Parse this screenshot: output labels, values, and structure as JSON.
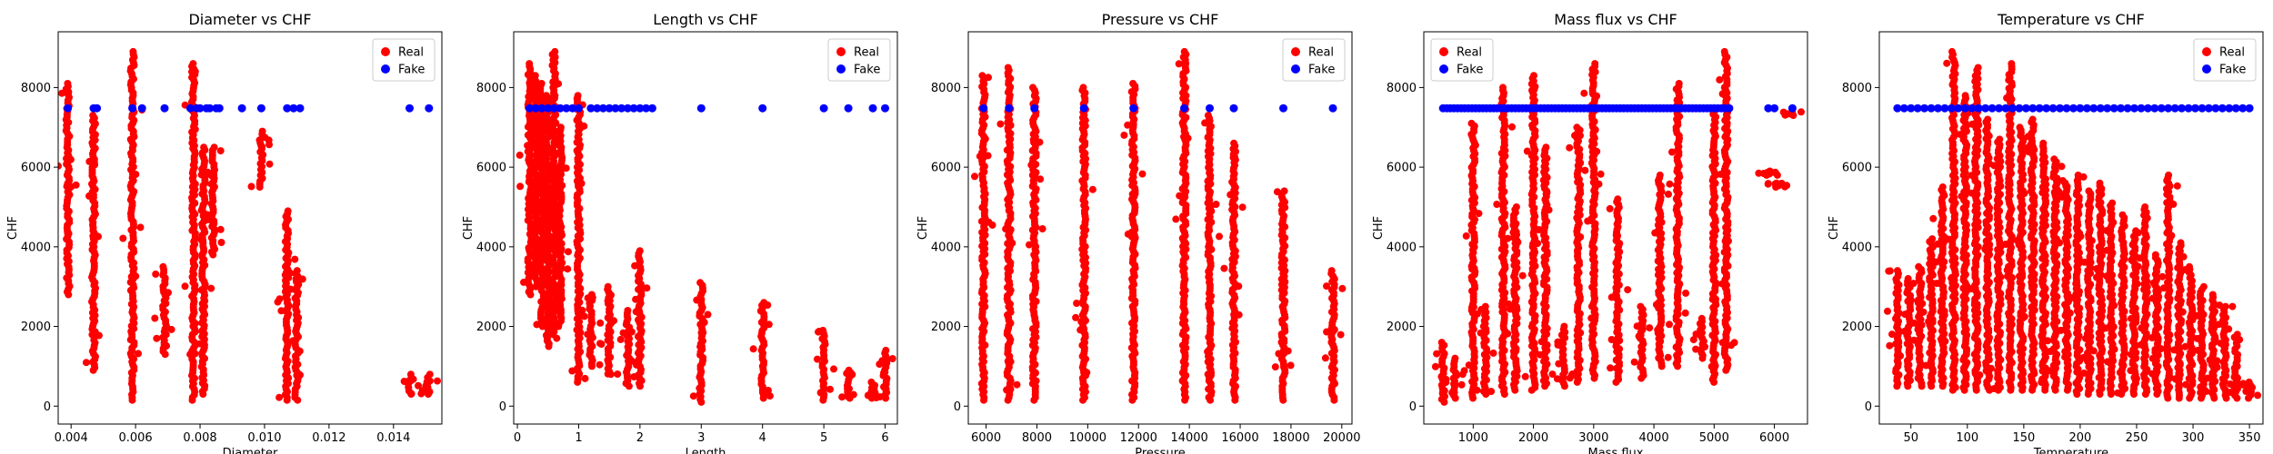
{
  "colors": {
    "real": "#ff0000",
    "fake": "#0000ff"
  },
  "chart_data": [
    {
      "type": "scatter",
      "title": "Diameter vs CHF",
      "xlabel": "Diameter",
      "ylabel": "CHF",
      "xlim": [
        0.0036,
        0.0155
      ],
      "ylim": [
        -450,
        9400
      ],
      "xticks": [
        0.004,
        0.006,
        0.008,
        0.01,
        0.012,
        0.014
      ],
      "xtick_labels": [
        "0.004",
        "0.006",
        "0.008",
        "0.010",
        "0.012",
        "0.014"
      ],
      "yticks": [
        0,
        2000,
        4000,
        6000,
        8000
      ],
      "ytick_labels": [
        "0",
        "2000",
        "4000",
        "6000",
        "8000"
      ],
      "legend": {
        "position": "top-right",
        "entries": [
          "Real",
          "Fake"
        ]
      },
      "real_columns": [
        {
          "x": 0.0039,
          "y_min": 2800,
          "y_max": 8100
        },
        {
          "x": 0.0047,
          "y_min": 900,
          "y_max": 7300
        },
        {
          "x": 0.0059,
          "y_min": 150,
          "y_max": 8900
        },
        {
          "x": 0.0069,
          "y_min": 1300,
          "y_max": 3500
        },
        {
          "x": 0.0078,
          "y_min": 150,
          "y_max": 8600
        },
        {
          "x": 0.0081,
          "y_min": 300,
          "y_max": 6500
        },
        {
          "x": 0.0084,
          "y_min": 3800,
          "y_max": 6500
        },
        {
          "x": 0.0099,
          "y_min": 5500,
          "y_max": 6900
        },
        {
          "x": 0.0107,
          "y_min": 150,
          "y_max": 4900
        },
        {
          "x": 0.011,
          "y_min": 150,
          "y_max": 3400
        },
        {
          "x": 0.0145,
          "y_min": 300,
          "y_max": 800
        },
        {
          "x": 0.0151,
          "y_min": 300,
          "y_max": 800
        }
      ],
      "fake_points": {
        "y": 7480,
        "x": [
          0.0039,
          0.0047,
          0.0048,
          0.0059,
          0.0062,
          0.0069,
          0.0077,
          0.0079,
          0.008,
          0.0082,
          0.0083,
          0.0085,
          0.0086,
          0.0093,
          0.0099,
          0.0107,
          0.0109,
          0.0111,
          0.0145,
          0.0151
        ]
      }
    },
    {
      "type": "scatter",
      "title": "Length vs CHF",
      "xlabel": "Length",
      "ylabel": "CHF",
      "xlim": [
        -0.06,
        6.2
      ],
      "ylim": [
        -450,
        9400
      ],
      "xticks": [
        0,
        1,
        2,
        3,
        4,
        5,
        6
      ],
      "xtick_labels": [
        "0",
        "1",
        "2",
        "3",
        "4",
        "5",
        "6"
      ],
      "yticks": [
        0,
        2000,
        4000,
        6000,
        8000
      ],
      "ytick_labels": [
        "0",
        "2000",
        "4000",
        "6000",
        "8000"
      ],
      "legend": {
        "position": "top-right",
        "entries": [
          "Real",
          "Fake"
        ]
      },
      "real_columns": [
        {
          "x": 0.2,
          "y_min": 2800,
          "y_max": 8600
        },
        {
          "x": 0.3,
          "y_min": 3000,
          "y_max": 8300
        },
        {
          "x": 0.4,
          "y_min": 2000,
          "y_max": 8100
        },
        {
          "x": 0.5,
          "y_min": 1500,
          "y_max": 7800
        },
        {
          "x": 0.6,
          "y_min": 1800,
          "y_max": 8900
        },
        {
          "x": 0.7,
          "y_min": 2000,
          "y_max": 7000
        },
        {
          "x": 1.0,
          "y_min": 600,
          "y_max": 7800
        },
        {
          "x": 1.2,
          "y_min": 1000,
          "y_max": 2800
        },
        {
          "x": 1.5,
          "y_min": 800,
          "y_max": 3000
        },
        {
          "x": 1.8,
          "y_min": 500,
          "y_max": 2400
        },
        {
          "x": 2.0,
          "y_min": 500,
          "y_max": 3900
        },
        {
          "x": 3.0,
          "y_min": 100,
          "y_max": 3100
        },
        {
          "x": 4.0,
          "y_min": 200,
          "y_max": 2600
        },
        {
          "x": 5.0,
          "y_min": 150,
          "y_max": 1900
        },
        {
          "x": 5.4,
          "y_min": 200,
          "y_max": 900
        },
        {
          "x": 5.8,
          "y_min": 200,
          "y_max": 600
        },
        {
          "x": 6.0,
          "y_min": 200,
          "y_max": 1400
        }
      ],
      "fake_points": {
        "y": 7480,
        "x": [
          0.2,
          0.3,
          0.4,
          0.5,
          0.6,
          0.7,
          0.8,
          0.9,
          1.0,
          1.2,
          1.3,
          1.4,
          1.5,
          1.6,
          1.7,
          1.8,
          1.9,
          2.0,
          2.1,
          2.2,
          3.0,
          4.0,
          5.0,
          5.4,
          5.8,
          6.0
        ]
      }
    },
    {
      "type": "scatter",
      "title": "Pressure vs CHF",
      "xlabel": "Pressure",
      "ylabel": "CHF",
      "xlim": [
        5300,
        20400
      ],
      "ylim": [
        -450,
        9400
      ],
      "xticks": [
        6000,
        8000,
        10000,
        12000,
        14000,
        16000,
        18000,
        20000
      ],
      "xtick_labels": [
        "6000",
        "8000",
        "10000",
        "12000",
        "14000",
        "16000",
        "18000",
        "20000"
      ],
      "yticks": [
        0,
        2000,
        4000,
        6000,
        8000
      ],
      "ytick_labels": [
        "0",
        "2000",
        "4000",
        "6000",
        "8000"
      ],
      "legend": {
        "position": "top-right",
        "entries": [
          "Real",
          "Fake"
        ]
      },
      "real_columns": [
        {
          "x": 5900,
          "y_min": 150,
          "y_max": 8300
        },
        {
          "x": 6900,
          "y_min": 150,
          "y_max": 8500
        },
        {
          "x": 7900,
          "y_min": 150,
          "y_max": 8000
        },
        {
          "x": 9850,
          "y_min": 150,
          "y_max": 8000
        },
        {
          "x": 11800,
          "y_min": 150,
          "y_max": 8100
        },
        {
          "x": 13800,
          "y_min": 150,
          "y_max": 8900
        },
        {
          "x": 14800,
          "y_min": 150,
          "y_max": 7300
        },
        {
          "x": 15750,
          "y_min": 150,
          "y_max": 6600
        },
        {
          "x": 17700,
          "y_min": 150,
          "y_max": 5400
        },
        {
          "x": 19650,
          "y_min": 150,
          "y_max": 3400
        }
      ],
      "fake_points": {
        "y": 7480,
        "x": [
          5900,
          6900,
          7900,
          9850,
          11800,
          13800,
          14800,
          15750,
          17700,
          19650
        ]
      }
    },
    {
      "type": "scatter",
      "title": "Mass flux vs CHF",
      "xlabel": "Mass flux",
      "ylabel": "CHF",
      "xlim": [
        180,
        6550
      ],
      "ylim": [
        -450,
        9400
      ],
      "xticks": [
        1000,
        2000,
        3000,
        4000,
        5000,
        6000
      ],
      "xtick_labels": [
        "1000",
        "2000",
        "3000",
        "4000",
        "5000",
        "6000"
      ],
      "yticks": [
        0,
        2000,
        4000,
        6000,
        8000
      ],
      "ytick_labels": [
        "0",
        "2000",
        "4000",
        "6000",
        "8000"
      ],
      "legend": {
        "position": "top-left",
        "entries": [
          "Real",
          "Fake"
        ]
      },
      "real_columns": [
        {
          "x": 500,
          "y_min": 100,
          "y_max": 1600
        },
        {
          "x": 700,
          "y_min": 200,
          "y_max": 1200
        },
        {
          "x": 1000,
          "y_min": 200,
          "y_max": 7100
        },
        {
          "x": 1200,
          "y_min": 300,
          "y_max": 2500
        },
        {
          "x": 1500,
          "y_min": 300,
          "y_max": 8000
        },
        {
          "x": 1700,
          "y_min": 400,
          "y_max": 5000
        },
        {
          "x": 2000,
          "y_min": 400,
          "y_max": 8300
        },
        {
          "x": 2200,
          "y_min": 500,
          "y_max": 6500
        },
        {
          "x": 2500,
          "y_min": 500,
          "y_max": 2000
        },
        {
          "x": 2750,
          "y_min": 600,
          "y_max": 7000
        },
        {
          "x": 3000,
          "y_min": 700,
          "y_max": 8600
        },
        {
          "x": 3400,
          "y_min": 600,
          "y_max": 5200
        },
        {
          "x": 3800,
          "y_min": 700,
          "y_max": 2500
        },
        {
          "x": 4100,
          "y_min": 1000,
          "y_max": 5800
        },
        {
          "x": 4400,
          "y_min": 1000,
          "y_max": 8100
        },
        {
          "x": 4800,
          "y_min": 1200,
          "y_max": 2200
        },
        {
          "x": 5000,
          "y_min": 600,
          "y_max": 7400
        },
        {
          "x": 5200,
          "y_min": 900,
          "y_max": 8900
        },
        {
          "x": 5900,
          "y_min": 5800,
          "y_max": 5900
        },
        {
          "x": 6050,
          "y_min": 5500,
          "y_max": 5600
        },
        {
          "x": 6300,
          "y_min": 7300,
          "y_max": 7400
        }
      ],
      "fake_points": {
        "y": 7480,
        "x": [
          500,
          560,
          620,
          680,
          740,
          800,
          860,
          920,
          980,
          1040,
          1100,
          1160,
          1220,
          1280,
          1340,
          1400,
          1460,
          1520,
          1580,
          1640,
          1700,
          1760,
          1820,
          1880,
          1940,
          2000,
          2060,
          2120,
          2180,
          2240,
          2300,
          2360,
          2420,
          2480,
          2540,
          2600,
          2660,
          2720,
          2780,
          2840,
          2900,
          2960,
          3020,
          3080,
          3140,
          3200,
          3260,
          3320,
          3380,
          3440,
          3500,
          3560,
          3620,
          3680,
          3740,
          3800,
          3860,
          3920,
          3980,
          4040,
          4100,
          4160,
          4220,
          4280,
          4340,
          4400,
          4460,
          4520,
          4580,
          4640,
          4700,
          4760,
          4820,
          4880,
          4940,
          5000,
          5060,
          5120,
          5180,
          5250,
          5900,
          6000,
          6300
        ]
      }
    },
    {
      "type": "scatter",
      "title": "Temperature vs CHF",
      "xlabel": "Temperature",
      "ylabel": "CHF",
      "xlim": [
        22,
        362
      ],
      "ylim": [
        -450,
        9400
      ],
      "xticks": [
        50,
        100,
        150,
        200,
        250,
        300,
        350
      ],
      "xtick_labels": [
        "50",
        "100",
        "150",
        "200",
        "250",
        "300",
        "350"
      ],
      "yticks": [
        0,
        2000,
        4000,
        6000,
        8000
      ],
      "ytick_labels": [
        "0",
        "2000",
        "4000",
        "6000",
        "8000"
      ],
      "legend": {
        "position": "top-right",
        "entries": [
          "Real",
          "Fake"
        ]
      },
      "real_columns": [
        {
          "x": 38,
          "y_min": 500,
          "y_max": 3400
        },
        {
          "x": 48,
          "y_min": 500,
          "y_max": 3200
        },
        {
          "x": 58,
          "y_min": 500,
          "y_max": 3500
        },
        {
          "x": 68,
          "y_min": 500,
          "y_max": 4200
        },
        {
          "x": 78,
          "y_min": 500,
          "y_max": 5500
        },
        {
          "x": 88,
          "y_min": 400,
          "y_max": 8900
        },
        {
          "x": 98,
          "y_min": 400,
          "y_max": 7800
        },
        {
          "x": 108,
          "y_min": 400,
          "y_max": 8500
        },
        {
          "x": 118,
          "y_min": 400,
          "y_max": 7200
        },
        {
          "x": 128,
          "y_min": 400,
          "y_max": 6700
        },
        {
          "x": 138,
          "y_min": 400,
          "y_max": 8600
        },
        {
          "x": 148,
          "y_min": 400,
          "y_max": 7000
        },
        {
          "x": 158,
          "y_min": 400,
          "y_max": 7200
        },
        {
          "x": 168,
          "y_min": 400,
          "y_max": 6600
        },
        {
          "x": 178,
          "y_min": 400,
          "y_max": 6200
        },
        {
          "x": 188,
          "y_min": 400,
          "y_max": 5600
        },
        {
          "x": 198,
          "y_min": 300,
          "y_max": 5800
        },
        {
          "x": 208,
          "y_min": 300,
          "y_max": 5400
        },
        {
          "x": 218,
          "y_min": 300,
          "y_max": 5600
        },
        {
          "x": 228,
          "y_min": 300,
          "y_max": 5100
        },
        {
          "x": 238,
          "y_min": 300,
          "y_max": 4800
        },
        {
          "x": 248,
          "y_min": 300,
          "y_max": 4400
        },
        {
          "x": 258,
          "y_min": 300,
          "y_max": 5000
        },
        {
          "x": 268,
          "y_min": 300,
          "y_max": 3800
        },
        {
          "x": 278,
          "y_min": 200,
          "y_max": 5800
        },
        {
          "x": 288,
          "y_min": 200,
          "y_max": 4100
        },
        {
          "x": 298,
          "y_min": 200,
          "y_max": 3500
        },
        {
          "x": 308,
          "y_min": 200,
          "y_max": 3000
        },
        {
          "x": 318,
          "y_min": 200,
          "y_max": 2800
        },
        {
          "x": 328,
          "y_min": 200,
          "y_max": 2500
        },
        {
          "x": 338,
          "y_min": 200,
          "y_max": 1800
        },
        {
          "x": 350,
          "y_min": 200,
          "y_max": 600
        }
      ],
      "fake_points": {
        "y": 7480,
        "x": [
          38,
          44,
          50,
          56,
          62,
          68,
          74,
          80,
          86,
          92,
          98,
          104,
          110,
          116,
          122,
          128,
          134,
          140,
          146,
          152,
          158,
          164,
          170,
          176,
          182,
          188,
          194,
          200,
          206,
          212,
          218,
          224,
          230,
          236,
          242,
          248,
          254,
          260,
          266,
          272,
          278,
          284,
          290,
          296,
          302,
          308,
          314,
          320,
          326,
          332,
          338,
          344,
          350
        ]
      }
    }
  ]
}
